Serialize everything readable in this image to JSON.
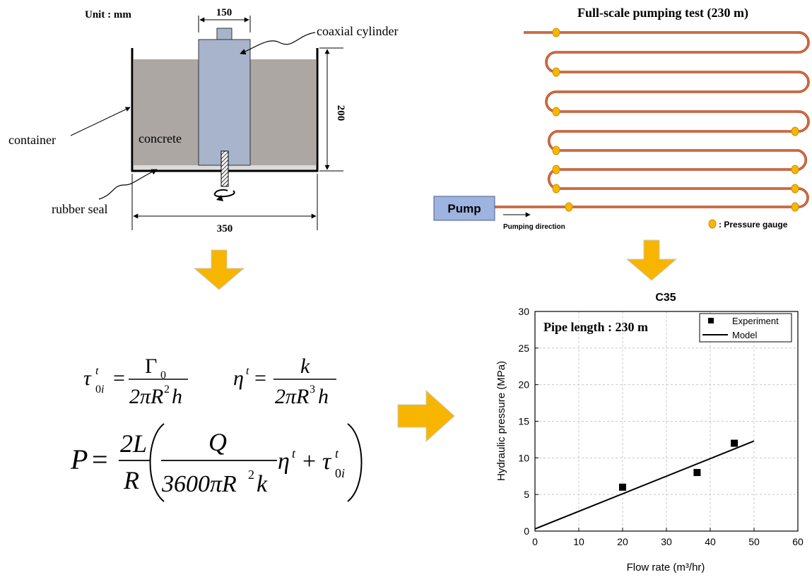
{
  "viscometer": {
    "unit_label": "Unit : mm",
    "dim_top": "150",
    "dim_right": "200",
    "dim_bottom": "350",
    "label_cylinder": "coaxial cylinder",
    "label_container": "container",
    "label_concrete": "concrete",
    "label_seal": "rubber seal"
  },
  "pumping": {
    "title": "Full-scale pumping test (230 m)",
    "pump_label": "Pump",
    "direction_label": "Pumping direction",
    "legend_label": ": Pressure gauge",
    "colors": {
      "pipe": "#c0522a",
      "gauge": "#f5b800",
      "pump_fill": "#9db3e0"
    }
  },
  "formulas": {
    "tau_lhs": "τ",
    "gamma": "Γ",
    "eta_lhs": "η",
    "k": "k",
    "den1": "2πR",
    "h": "h",
    "p_lhs": "P",
    "two_l": "2L",
    "r": "R",
    "q": "Q",
    "den3": "3600πR",
    "plus": "+"
  },
  "arrows": {
    "color": "#f7b500"
  },
  "chart_data": {
    "type": "scatter",
    "title": "C35",
    "annotation": "Pipe length : 230 m",
    "xlabel": "Flow rate (m³/hr)",
    "ylabel": "Hydraulic pressure (MPa)",
    "xlim": [
      0,
      60
    ],
    "ylim": [
      0,
      30
    ],
    "xticks": [
      0,
      10,
      20,
      30,
      40,
      50,
      60
    ],
    "yticks": [
      0,
      5,
      10,
      15,
      20,
      25,
      30
    ],
    "grid": true,
    "legend_position": "top-right",
    "series": [
      {
        "name": "Experiment",
        "kind": "points",
        "x": [
          20,
          37,
          45.5
        ],
        "y": [
          6,
          8,
          12
        ]
      },
      {
        "name": "Model",
        "kind": "line",
        "x": [
          0,
          50
        ],
        "y": [
          0.3,
          12.3
        ]
      }
    ]
  }
}
